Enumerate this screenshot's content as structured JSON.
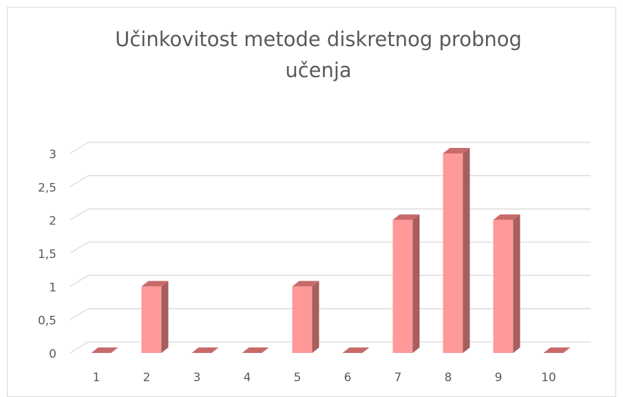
{
  "chart_data": {
    "type": "bar3d",
    "title": "Učinkovitost metode diskretnog probnog učenja",
    "categories": [
      "1",
      "2",
      "3",
      "4",
      "5",
      "6",
      "7",
      "8",
      "9",
      "10"
    ],
    "values": [
      0,
      1,
      0,
      0,
      1,
      0,
      2,
      3,
      2,
      0
    ],
    "color": "#ff9999",
    "ylim": [
      0,
      3
    ],
    "yticks": [
      0,
      {
        "value": 0.5,
        "label": "0,5"
      },
      1,
      {
        "value": 1.5,
        "label": "1,5"
      },
      2,
      {
        "value": 2.5,
        "label": "2,5"
      },
      3
    ],
    "grid": true
  }
}
